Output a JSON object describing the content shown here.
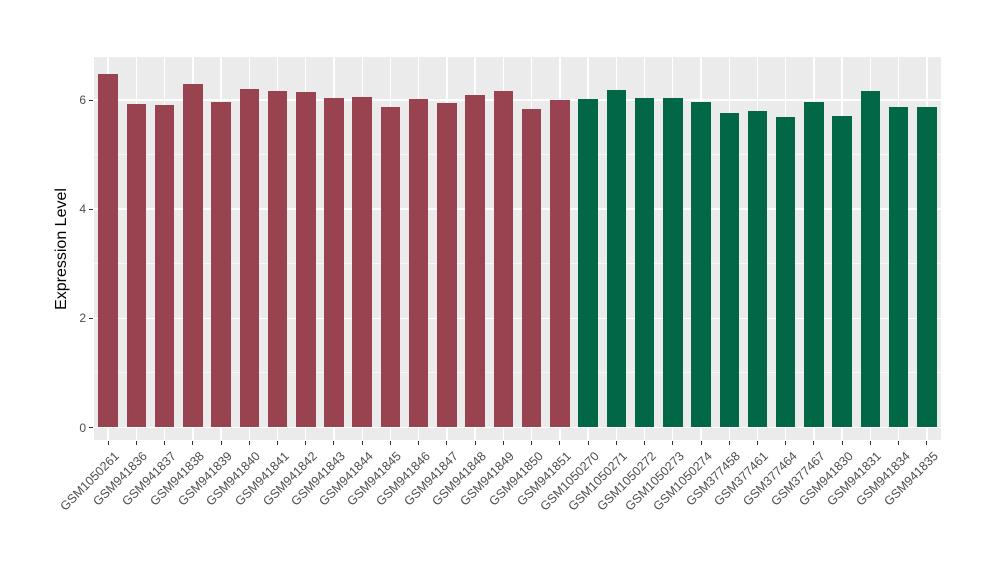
{
  "figure": {
    "panel_background": "#EBEBEB",
    "gridline_color": "#FFFFFF",
    "axis_text_color": "#4D4D4D",
    "axis_title_color": "#000000"
  },
  "chart_data": {
    "type": "bar",
    "title": "",
    "xlabel": "",
    "ylabel": "Expression Level",
    "ylim": [
      0,
      6.8
    ],
    "yticks": [
      0,
      2,
      4,
      6
    ],
    "minor_gridlines": [
      1,
      3,
      5
    ],
    "grid": true,
    "legend": false,
    "categories": [
      "GSM1050261",
      "GSM941836",
      "GSM941837",
      "GSM941838",
      "GSM941839",
      "GSM941840",
      "GSM941841",
      "GSM941842",
      "GSM941843",
      "GSM941844",
      "GSM941845",
      "GSM941846",
      "GSM941847",
      "GSM941848",
      "GSM941849",
      "GSM941850",
      "GSM941851",
      "GSM1050270",
      "GSM1050271",
      "GSM1050272",
      "GSM1050273",
      "GSM1050274",
      "GSM377458",
      "GSM377461",
      "GSM377464",
      "GSM377467",
      "GSM941830",
      "GSM941831",
      "GSM941834",
      "GSM941835"
    ],
    "values": [
      6.48,
      5.92,
      5.9,
      6.29,
      5.96,
      6.21,
      6.17,
      6.15,
      6.03,
      6.06,
      5.88,
      6.02,
      5.95,
      6.1,
      6.17,
      5.84,
      6.0,
      6.02,
      6.19,
      6.04,
      6.04,
      5.97,
      5.76,
      5.8,
      5.69,
      5.97,
      5.71,
      6.17,
      5.88,
      5.88
    ],
    "groups": [
      {
        "color": "#9A4350",
        "start_index": 0,
        "count": 17
      },
      {
        "color": "#016747",
        "start_index": 17,
        "count": 13
      }
    ],
    "bar_colors": [
      "#9A4350",
      "#9A4350",
      "#9A4350",
      "#9A4350",
      "#9A4350",
      "#9A4350",
      "#9A4350",
      "#9A4350",
      "#9A4350",
      "#9A4350",
      "#9A4350",
      "#9A4350",
      "#9A4350",
      "#9A4350",
      "#9A4350",
      "#9A4350",
      "#9A4350",
      "#016747",
      "#016747",
      "#016747",
      "#016747",
      "#016747",
      "#016747",
      "#016747",
      "#016747",
      "#016747",
      "#016747",
      "#016747",
      "#016747",
      "#016747"
    ]
  }
}
